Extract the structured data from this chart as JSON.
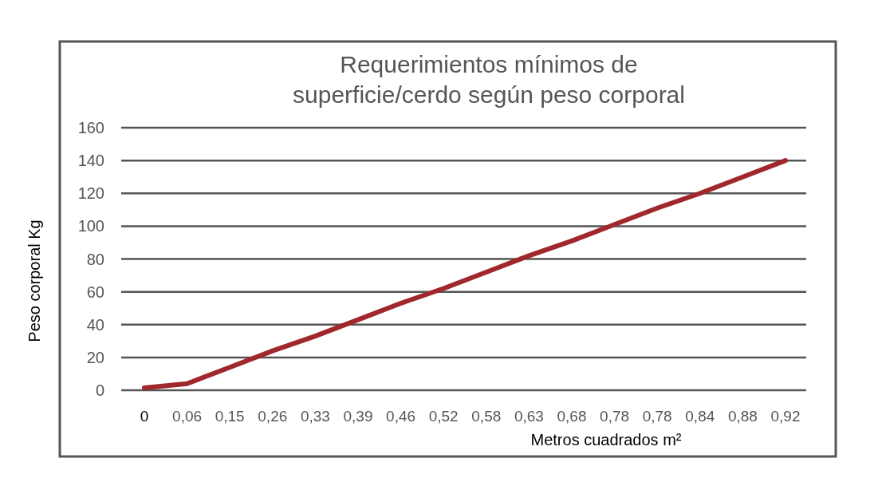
{
  "chart_data": {
    "type": "line",
    "title": "Requerimientos mínimos de\nsuperficie/cerdo según peso corporal",
    "xlabel": "Metros cuadrados m²",
    "ylabel": "Peso corporal Kg",
    "categories": [
      "0",
      "0,06",
      "0,15",
      "0,26",
      "0,33",
      "0,39",
      "0,46",
      "0,52",
      "0,58",
      "0,63",
      "0,68",
      "0,78",
      "0,78",
      "0,84",
      "0,88",
      "0,92"
    ],
    "series": [
      {
        "color": "#a0282d",
        "values": [
          1.5,
          4,
          14,
          24,
          33,
          43,
          53,
          62,
          72,
          82,
          91,
          101,
          111,
          120,
          130,
          140
        ]
      }
    ],
    "ylim": [
      0,
      160
    ],
    "yticks": [
      0,
      20,
      40,
      60,
      80,
      100,
      120,
      140,
      160
    ],
    "grid": "y",
    "marker": "none",
    "line_style": "solid"
  }
}
